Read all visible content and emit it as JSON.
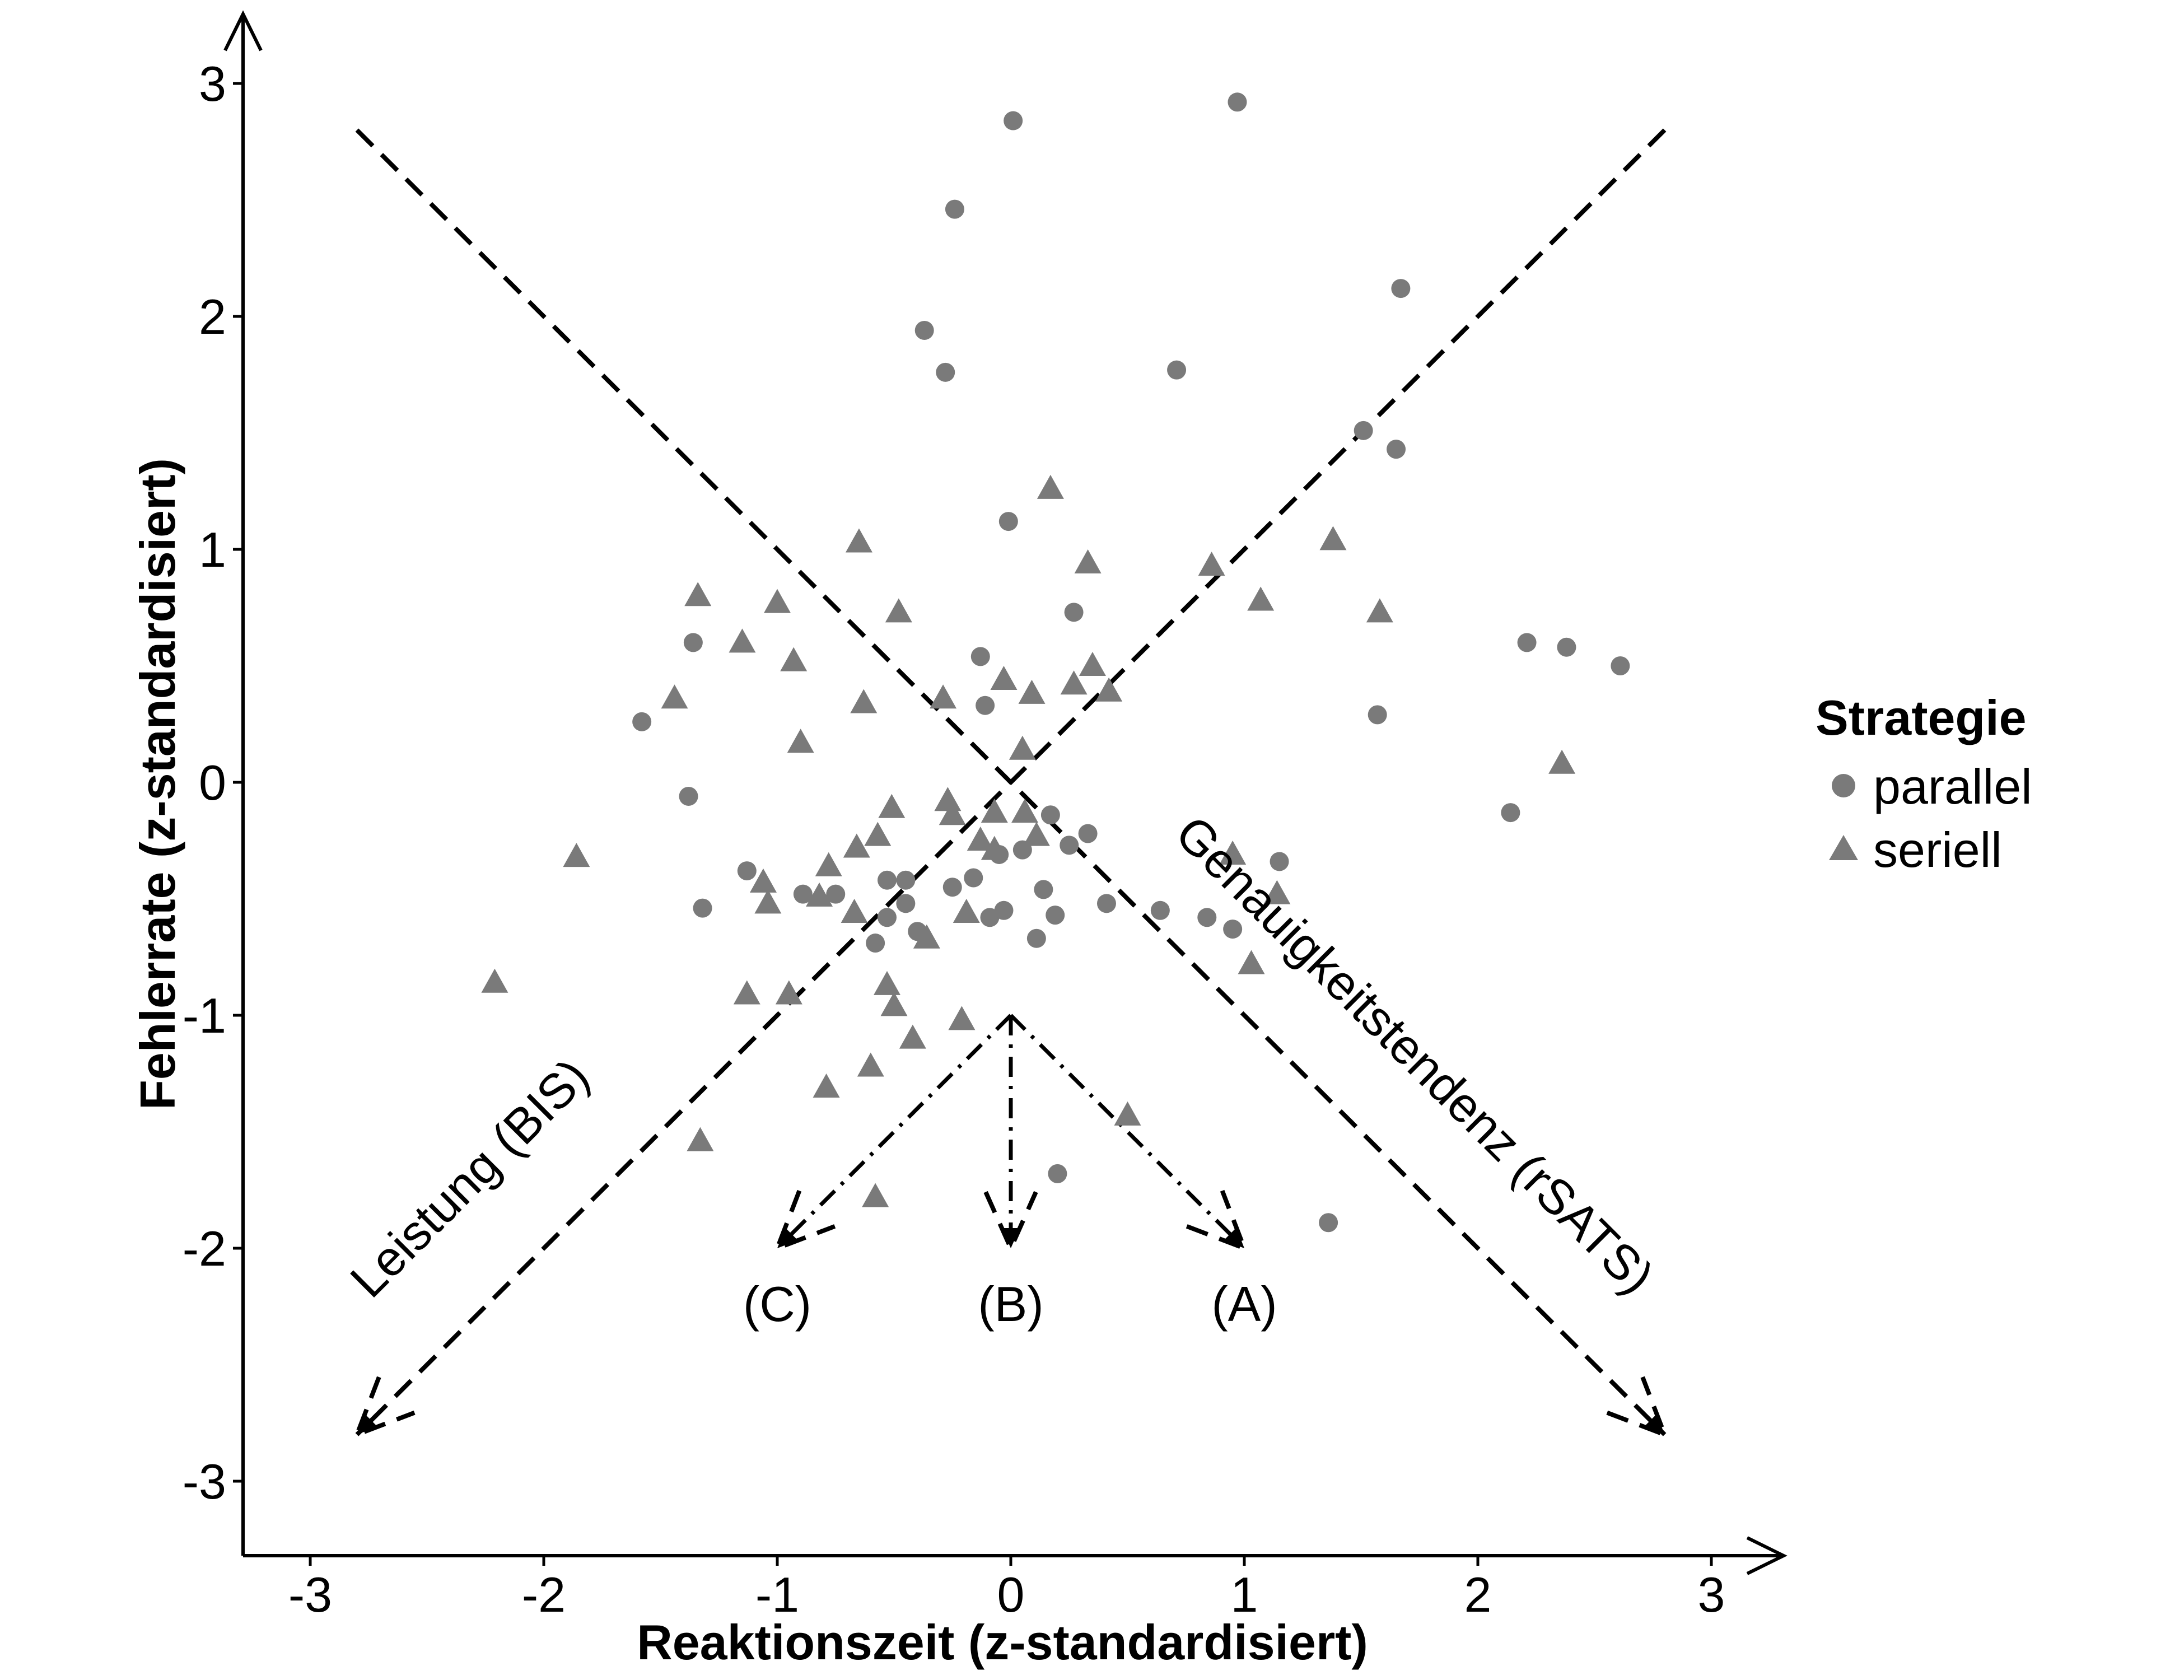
{
  "chart_data": {
    "type": "scatter",
    "xlabel": "Reaktionszeit (z-standardisiert)",
    "ylabel": "Fehlerrate (z-standardisiert)",
    "xlim": [
      -3.3,
      3.3
    ],
    "ylim": [
      -3.3,
      3.3
    ],
    "x_ticks": [
      -3,
      -2,
      -1,
      0,
      1,
      2,
      3
    ],
    "y_ticks": [
      -3,
      -2,
      -1,
      0,
      1,
      2,
      3
    ],
    "x_tick_labels": [
      "-3",
      "-2",
      "-1",
      "0",
      "1",
      "2",
      "3"
    ],
    "y_tick_labels": [
      "-3",
      "-2",
      "-1",
      "0",
      "1",
      "2",
      "3"
    ],
    "grid": false,
    "marker_color": "#7a7a7a",
    "legend": {
      "title": "Strategie",
      "placement": "right",
      "items": [
        {
          "label": "parallel",
          "marker": "circle"
        },
        {
          "label": "seriell",
          "marker": "triangle"
        }
      ]
    },
    "series": [
      {
        "name": "parallel",
        "marker": "circle",
        "points": [
          [
            0.01,
            2.84
          ],
          [
            0.97,
            2.92
          ],
          [
            -0.24,
            2.46
          ],
          [
            -0.37,
            1.94
          ],
          [
            -0.28,
            1.76
          ],
          [
            0.71,
            1.77
          ],
          [
            1.67,
            2.12
          ],
          [
            1.51,
            1.51
          ],
          [
            1.65,
            1.43
          ],
          [
            -0.01,
            1.12
          ],
          [
            0.27,
            0.73
          ],
          [
            -1.36,
            0.6
          ],
          [
            -1.58,
            0.26
          ],
          [
            -0.13,
            0.54
          ],
          [
            -0.11,
            0.33
          ],
          [
            2.21,
            0.6
          ],
          [
            2.38,
            0.58
          ],
          [
            2.61,
            0.5
          ],
          [
            1.57,
            0.29
          ],
          [
            -1.38,
            -0.06
          ],
          [
            2.14,
            -0.13
          ],
          [
            -1.32,
            -0.54
          ],
          [
            -1.13,
            -0.38
          ],
          [
            -0.89,
            -0.48
          ],
          [
            -0.75,
            -0.48
          ],
          [
            -0.53,
            -0.42
          ],
          [
            -0.45,
            -0.42
          ],
          [
            -0.53,
            -0.58
          ],
          [
            -0.45,
            -0.52
          ],
          [
            -0.58,
            -0.69
          ],
          [
            -0.4,
            -0.64
          ],
          [
            -0.25,
            -0.45
          ],
          [
            -0.16,
            -0.41
          ],
          [
            -0.09,
            -0.58
          ],
          [
            -0.03,
            -0.55
          ],
          [
            -0.05,
            -0.31
          ],
          [
            0.05,
            -0.29
          ],
          [
            0.14,
            -0.46
          ],
          [
            0.19,
            -0.57
          ],
          [
            0.11,
            -0.67
          ],
          [
            0.17,
            -0.14
          ],
          [
            0.25,
            -0.27
          ],
          [
            0.33,
            -0.22
          ],
          [
            0.41,
            -0.52
          ],
          [
            0.64,
            -0.55
          ],
          [
            0.84,
            -0.58
          ],
          [
            0.95,
            -0.63
          ],
          [
            1.15,
            -0.34
          ],
          [
            0.2,
            -1.68
          ],
          [
            1.36,
            -1.89
          ]
        ]
      },
      {
        "name": "seriell",
        "marker": "triangle",
        "points": [
          [
            0.17,
            1.26
          ],
          [
            -0.65,
            1.03
          ],
          [
            1.38,
            1.04
          ],
          [
            0.33,
            0.94
          ],
          [
            0.86,
            0.93
          ],
          [
            -1.34,
            0.8
          ],
          [
            -1.0,
            0.77
          ],
          [
            -0.48,
            0.73
          ],
          [
            1.07,
            0.78
          ],
          [
            1.58,
            0.73
          ],
          [
            -1.15,
            0.6
          ],
          [
            -0.93,
            0.52
          ],
          [
            0.35,
            0.5
          ],
          [
            0.27,
            0.42
          ],
          [
            0.42,
            0.39
          ],
          [
            -1.44,
            0.36
          ],
          [
            -0.63,
            0.34
          ],
          [
            -0.29,
            0.36
          ],
          [
            -0.03,
            0.44
          ],
          [
            0.09,
            0.38
          ],
          [
            -0.9,
            0.17
          ],
          [
            0.05,
            0.14
          ],
          [
            2.36,
            0.08
          ],
          [
            -0.27,
            -0.08
          ],
          [
            -0.51,
            -0.11
          ],
          [
            -0.25,
            -0.14
          ],
          [
            -0.07,
            -0.13
          ],
          [
            0.06,
            -0.13
          ],
          [
            -0.57,
            -0.23
          ],
          [
            0.11,
            -0.23
          ],
          [
            -0.13,
            -0.25
          ],
          [
            -0.07,
            -0.29
          ],
          [
            -1.86,
            -0.32
          ],
          [
            -0.66,
            -0.28
          ],
          [
            -0.78,
            -0.36
          ],
          [
            -1.06,
            -0.43
          ],
          [
            -1.04,
            -0.52
          ],
          [
            -0.82,
            -0.49
          ],
          [
            -0.67,
            -0.56
          ],
          [
            0.95,
            -0.31
          ],
          [
            1.14,
            -0.48
          ],
          [
            -0.19,
            -0.56
          ],
          [
            -0.36,
            -0.67
          ],
          [
            1.03,
            -0.78
          ],
          [
            -2.21,
            -0.86
          ],
          [
            -1.13,
            -0.91
          ],
          [
            -0.95,
            -0.91
          ],
          [
            -0.53,
            -0.87
          ],
          [
            -0.5,
            -0.96
          ],
          [
            -0.42,
            -1.1
          ],
          [
            -0.21,
            -1.02
          ],
          [
            -0.6,
            -1.22
          ],
          [
            -0.79,
            -1.31
          ],
          [
            0.5,
            -1.43
          ],
          [
            -1.33,
            -1.54
          ],
          [
            -0.58,
            -1.78
          ]
        ]
      }
    ],
    "reference_lines": [
      {
        "label": "Leistung (BIS)",
        "from": [
          2.8,
          2.8
        ],
        "to": [
          -2.8,
          -2.8
        ],
        "style": "dashed"
      },
      {
        "label": "Genauigkeitstendenz (rSATS)",
        "from": [
          -2.8,
          2.8
        ],
        "to": [
          2.8,
          -2.8
        ],
        "style": "dashed"
      }
    ],
    "strategy_arrows": [
      {
        "label": "(C)",
        "from": [
          0,
          -1
        ],
        "to": [
          -1,
          -2
        ],
        "style": "dashdot"
      },
      {
        "label": "(B)",
        "from": [
          0,
          -1
        ],
        "to": [
          0,
          -2
        ],
        "style": "dashdot"
      },
      {
        "label": "(A)",
        "from": [
          0,
          -1
        ],
        "to": [
          1,
          -2
        ],
        "style": "dashdot"
      }
    ]
  }
}
